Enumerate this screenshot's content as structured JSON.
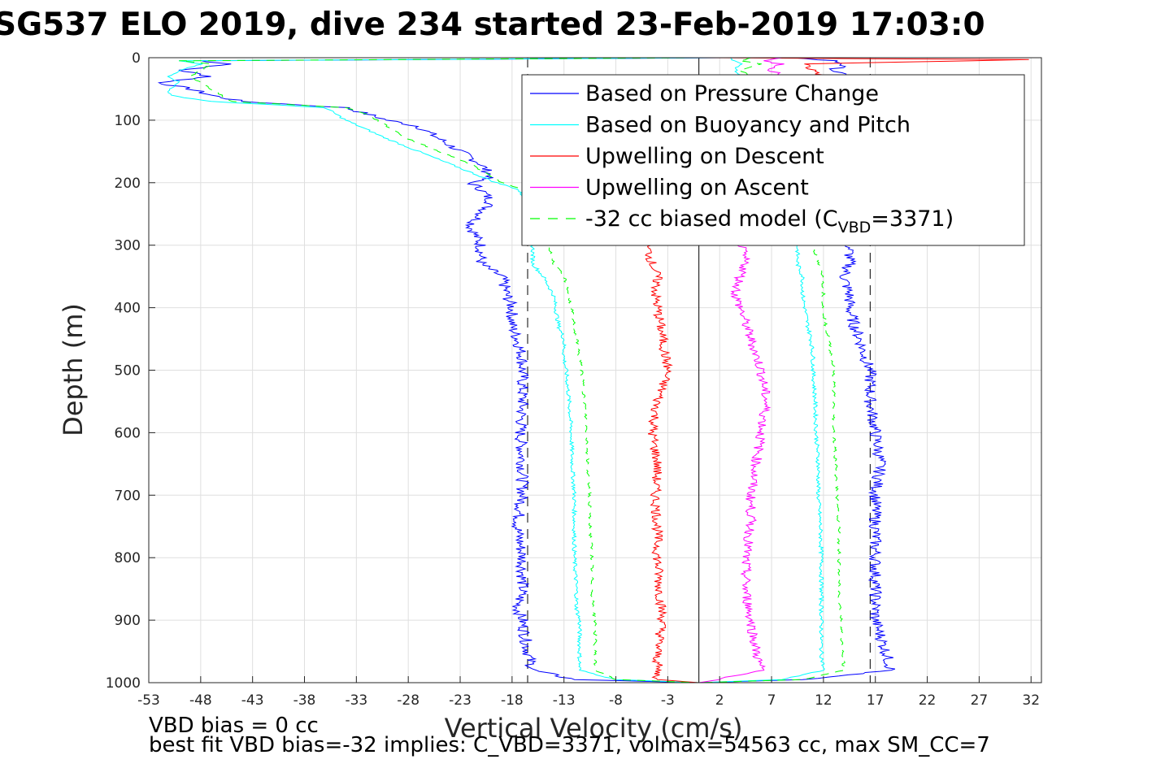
{
  "title": "SG537 ELO 2019, dive 234 started 23-Feb-2019 17:03:0",
  "notes": {
    "line1": "VBD bias = 0 cc",
    "line2": "best fit VBD bias=-32 implies: C_VBD=3371, volmax=54563 cc, max SM_CC=7"
  },
  "chart_data": {
    "type": "line",
    "xlabel": "Vertical Velocity (cm/s)",
    "ylabel": "Depth (m)",
    "xlim": [
      -53,
      33
    ],
    "ylim": [
      1000,
      0
    ],
    "y_reversed": true,
    "x_ticks": [
      -53,
      -48,
      -43,
      -38,
      -33,
      -28,
      -23,
      -18,
      -13,
      -8,
      -3,
      2,
      7,
      12,
      17,
      22,
      27,
      32
    ],
    "y_ticks": [
      0,
      100,
      200,
      300,
      400,
      500,
      600,
      700,
      800,
      900,
      1000
    ],
    "grid": true,
    "legend_position": "top-right",
    "legend": {
      "pressure": "Based on Pressure Change",
      "buoyancy": "Based on Buoyancy and Pitch",
      "up_desc": "Upwelling on Descent",
      "up_asc": "Upwelling on Ascent",
      "biased_pre": "-32 cc biased model (C",
      "biased_sub": "VBD",
      "biased_post": "=3371)"
    },
    "colors": {
      "pressure": "#0000ff",
      "buoyancy": "#00ffff",
      "up_desc": "#ff0000",
      "up_asc": "#ff00ff",
      "biased": "#00ff00",
      "reference": "#000000"
    },
    "reference_lines": {
      "zero": 0,
      "dashed": [
        -16.5,
        16.5
      ]
    },
    "series": [
      {
        "name": "Based on Pressure Change",
        "depth": [
          0,
          5,
          10,
          20,
          30,
          40,
          50,
          60,
          70,
          80,
          90,
          100,
          110,
          130,
          150,
          170,
          190,
          200,
          210,
          230,
          250,
          270,
          300,
          330,
          350,
          380,
          400,
          430,
          450,
          480,
          500,
          550,
          600,
          650,
          700,
          750,
          800,
          850,
          880,
          900,
          950,
          980,
          995,
          1000
        ],
        "descent": [
          3,
          -48,
          -45,
          -50,
          -47,
          -52,
          -49,
          -47,
          -44,
          -34,
          -32,
          -30,
          -27,
          -25,
          -23,
          -21,
          -20,
          -22,
          -21,
          -20,
          -21,
          -22,
          -21,
          -21,
          -19,
          -18.5,
          -18,
          -18,
          -17.5,
          -17,
          -17,
          -17,
          -17.2,
          -17,
          -17,
          -17.5,
          -17,
          -17,
          -17.5,
          -17,
          -16.5,
          -16,
          -12,
          0
        ],
        "ascent": [
          9,
          13,
          14,
          13,
          14,
          13,
          14,
          13,
          14,
          13,
          14,
          14,
          13.5,
          14,
          14,
          14,
          14,
          14,
          14,
          14,
          14,
          14,
          14.5,
          14.5,
          14,
          14.5,
          14.5,
          15,
          15.5,
          16,
          16.5,
          16.5,
          17,
          17.5,
          17,
          17,
          17,
          17,
          17,
          17,
          18,
          18.5,
          10,
          0
        ]
      },
      {
        "name": "Based on Buoyancy and Pitch",
        "depth": [
          0,
          5,
          10,
          20,
          30,
          40,
          50,
          60,
          70,
          80,
          90,
          100,
          130,
          150,
          170,
          190,
          200,
          210,
          230,
          250,
          270,
          300,
          330,
          350,
          380,
          400,
          430,
          450,
          480,
          500,
          550,
          600,
          650,
          700,
          750,
          800,
          850,
          880,
          900,
          950,
          980,
          995,
          1000
        ],
        "descent": [
          2,
          -50,
          -48,
          -50,
          -51,
          -50,
          -51,
          -51,
          -47,
          -36,
          -35,
          -34,
          -30,
          -27,
          -24,
          -21,
          -19.5,
          -17.5,
          -16.5,
          -16,
          -16,
          -16,
          -16,
          -15,
          -14,
          -13.8,
          -13.5,
          -13,
          -13,
          -12.8,
          -12.5,
          -12.3,
          -12.2,
          -12,
          -12,
          -12,
          -11.8,
          -11.8,
          -11.5,
          -11.5,
          -11.5,
          -8,
          0
        ],
        "ascent": [
          3,
          3.5,
          4,
          3.5,
          4,
          4,
          4,
          4,
          4,
          4,
          4,
          5,
          6,
          6.5,
          7,
          8,
          8.5,
          8.5,
          9,
          9,
          9,
          9.5,
          9.5,
          10,
          10,
          10.2,
          10.5,
          10.8,
          11,
          11,
          11.2,
          11.3,
          11.5,
          11.5,
          11.7,
          11.8,
          11.8,
          11.8,
          11.8,
          11.8,
          12,
          8,
          0
        ]
      },
      {
        "name": "Upwelling on Descent",
        "depth": [
          0,
          3,
          10,
          20,
          30,
          300,
          330,
          350,
          380,
          400,
          450,
          500,
          550,
          600,
          650,
          700,
          750,
          800,
          850,
          900,
          950,
          980,
          995,
          1000
        ],
        "values": [
          0,
          32,
          10,
          11,
          12,
          -5,
          -4.5,
          -4,
          -4.2,
          -4,
          -3.5,
          -3,
          -4,
          -4.5,
          -4,
          -4.2,
          -4,
          -4,
          -3.8,
          -3.5,
          -4,
          -4,
          -4,
          0
        ]
      },
      {
        "name": "Upwelling on Ascent",
        "depth": [
          0,
          5,
          10,
          20,
          30,
          300,
          330,
          350,
          380,
          400,
          450,
          500,
          550,
          600,
          650,
          700,
          750,
          800,
          850,
          900,
          950,
          980,
          995,
          1000
        ],
        "values": [
          8,
          6,
          8,
          7,
          8,
          4,
          4.5,
          4,
          3.5,
          4,
          5,
          6,
          6.5,
          6,
          5.5,
          5,
          5,
          4.5,
          4.5,
          5,
          5.5,
          6,
          2,
          0
        ]
      },
      {
        "name": "-32 cc biased model (CVBD=3371)",
        "depth": [
          0,
          5,
          10,
          20,
          30,
          40,
          50,
          60,
          70,
          80,
          90,
          100,
          130,
          150,
          170,
          190,
          200,
          210,
          230,
          250,
          270,
          300,
          330,
          350,
          380,
          400,
          430,
          450,
          480,
          500,
          550,
          600,
          650,
          700,
          750,
          800,
          850,
          880,
          900,
          950,
          980,
          995,
          1000
        ],
        "descent": [
          0,
          -50,
          -47,
          -48,
          -49,
          -48,
          -47,
          -46,
          -45,
          -34,
          -32,
          -31,
          -28,
          -25,
          -22,
          -20,
          -19,
          -17,
          -16,
          -15,
          -14.5,
          -14.5,
          -14,
          -13,
          -12.5,
          -12.3,
          -12,
          -11.8,
          -11.5,
          -11.3,
          -11,
          -10.8,
          -10.7,
          -10.5,
          -10.5,
          -10.3,
          -10.3,
          -10.2,
          -10,
          -10,
          -10,
          -8,
          0
        ]
      },
      {
        "name": "-32 cc biased model (CVBD=3371)",
        "depth": [
          0,
          5,
          10,
          20,
          30,
          300,
          330,
          350,
          380,
          400,
          430,
          450,
          480,
          500,
          550,
          600,
          650,
          700,
          750,
          800,
          850,
          880,
          900,
          950,
          980,
          995,
          1000
        ],
        "ascent": [
          5,
          4,
          6,
          4,
          5,
          11,
          11.5,
          12,
          12,
          12,
          12.2,
          12.5,
          12.8,
          13,
          13,
          13,
          13.2,
          13.3,
          13.5,
          13.5,
          13.5,
          13.6,
          13.7,
          13.8,
          14,
          10,
          0
        ]
      }
    ]
  }
}
